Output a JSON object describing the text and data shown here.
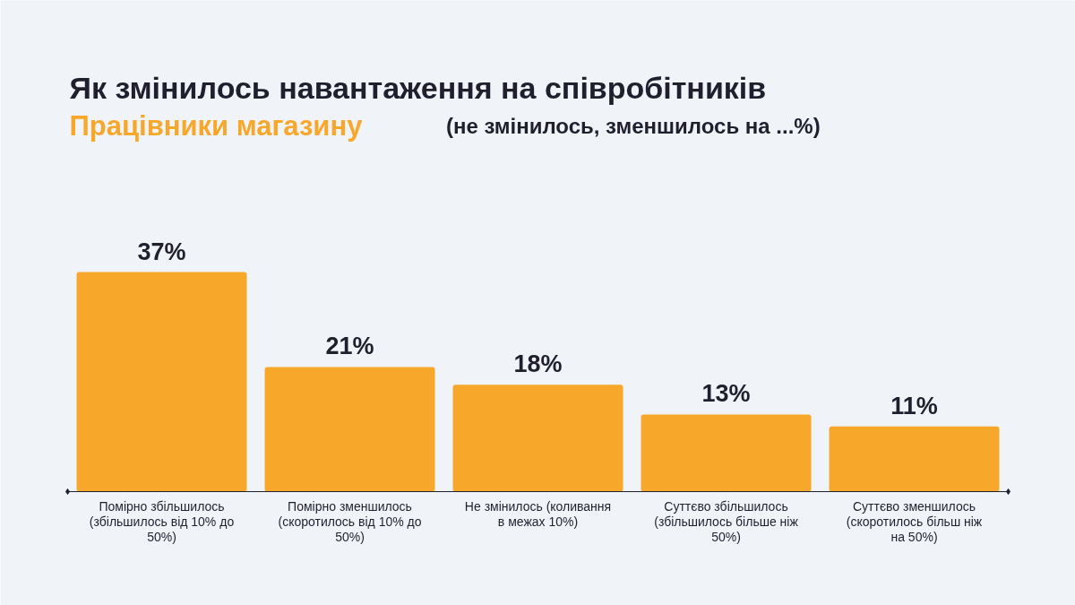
{
  "chart_data": {
    "type": "bar",
    "title": "Як змінилось навантаження на співробітників",
    "subtitle": "Працівники магазину",
    "annotations": [
      "(не змінилось, зменшилось на ...%)"
    ],
    "categories": [
      "Помірно збільшилось (збільшилось від 10% до 50%)",
      "Помірно зменшилось (скоротилось від 10% до 50%)",
      "Не змінилось (коливання в межах 10%)",
      "Суттєво збільшилось (збільшилось більше ніж 50%)",
      "Суттєво зменшилось (скоротилось більш ніж на 50%)"
    ],
    "values": [
      37,
      21,
      18,
      13,
      11
    ],
    "color": "#f7a82a",
    "data_labels": true,
    "value_labels": [
      "37%",
      "21%",
      "18%",
      "13%",
      "11%"
    ]
  }
}
